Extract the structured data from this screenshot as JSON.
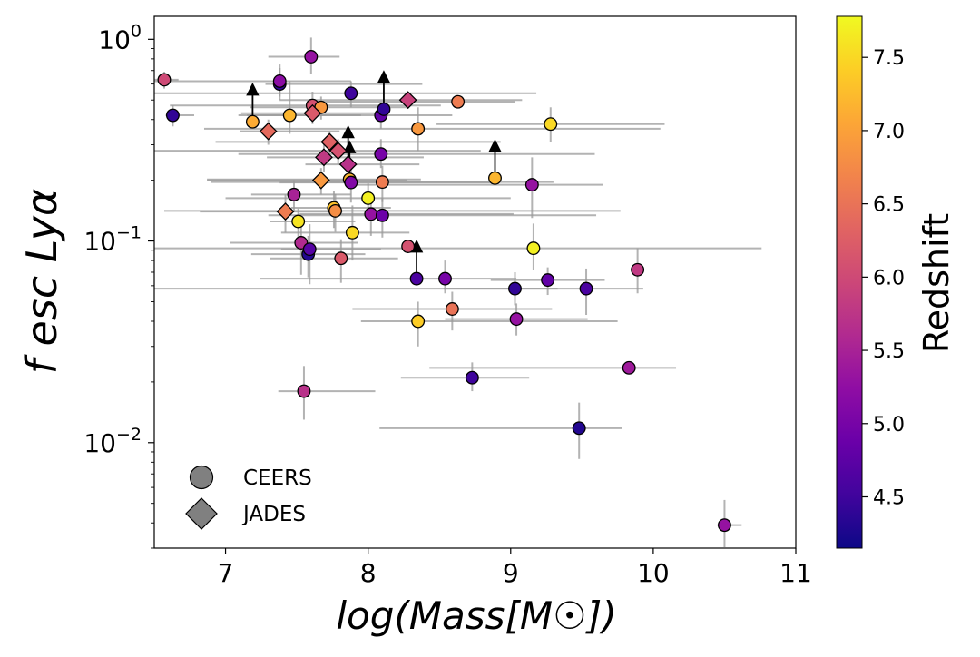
{
  "chart_data": {
    "type": "scatter",
    "xlabel": "log(Mass[M☉])",
    "ylabel": "f esc Lyα",
    "xscale": "linear",
    "yscale": "log",
    "xlim": [
      6.5,
      11
    ],
    "ylim": [
      0.003,
      1.3
    ],
    "x_ticks": [
      7,
      8,
      9,
      10,
      11
    ],
    "x_tick_labels": [
      "7",
      "8",
      "9",
      "10",
      "11"
    ],
    "y_ticks": [
      0.01,
      0.1,
      1
    ],
    "y_tick_labels": [
      "10",
      "10",
      "10"
    ],
    "y_tick_exponents": [
      "−2",
      "−1",
      "0"
    ],
    "legend": {
      "position": "bottom-left",
      "entries": [
        {
          "label": "CEERS",
          "marker": "circle",
          "color": "#808080"
        },
        {
          "label": "JADES",
          "marker": "diamond",
          "color": "#808080"
        }
      ]
    },
    "colorbar": {
      "label": "Redshift",
      "colormap": "plasma",
      "range": [
        4.15,
        7.78
      ],
      "ticks": [
        4.5,
        5.0,
        5.5,
        6.0,
        6.5,
        7.0,
        7.5
      ],
      "tick_labels": [
        "4.5",
        "5.0",
        "5.5",
        "6.0",
        "6.5",
        "7.0",
        "7.5"
      ]
    },
    "series": [
      {
        "name": "CEERS",
        "marker": "circle",
        "points": [
          {
            "x": 6.57,
            "y": 0.63,
            "z": 6.0,
            "xerr": [
              0.08,
              0.1
            ],
            "yerr": [
              0.06,
              0.06
            ]
          },
          {
            "x": 6.63,
            "y": 0.42,
            "z": 4.4,
            "xerr": [
              0.05,
              0.15
            ],
            "yerr": [
              0.05,
              0.05
            ]
          },
          {
            "x": 7.19,
            "y": 0.39,
            "z": 7.1,
            "xerr": [
              0.0,
              0.0
            ],
            "yerr": [
              0.0,
              0.0
            ],
            "lower_limit": true
          },
          {
            "x": 7.38,
            "y": 0.6,
            "z": 4.4,
            "xerr": [
              0.1,
              1.0
            ],
            "yerr": [
              0.1,
              0.15
            ]
          },
          {
            "x": 7.38,
            "y": 0.62,
            "z": 5.2,
            "xerr": [
              0.9,
              0.5
            ],
            "yerr": [
              0.1,
              0.1
            ]
          },
          {
            "x": 7.45,
            "y": 0.42,
            "z": 7.2,
            "xerr": [
              0.3,
              0.5
            ],
            "yerr": [
              0.08,
              0.2
            ]
          },
          {
            "x": 7.48,
            "y": 0.17,
            "z": 5.5,
            "xerr": [
              0.3,
              0.4
            ],
            "yerr": [
              0.03,
              0.03
            ]
          },
          {
            "x": 7.51,
            "y": 0.125,
            "z": 7.6,
            "xerr": [
              0.2,
              0.4
            ],
            "yerr": [
              0.02,
              0.02
            ]
          },
          {
            "x": 7.53,
            "y": 0.098,
            "z": 5.6,
            "xerr": [
              0.5,
              0.4
            ],
            "yerr": [
              0.03,
              0.03
            ]
          },
          {
            "x": 7.55,
            "y": 0.018,
            "z": 5.7,
            "xerr": [
              0.18,
              0.5
            ],
            "yerr": [
              0.005,
              0.006
            ]
          },
          {
            "x": 7.58,
            "y": 0.086,
            "z": 4.3,
            "xerr": [
              0.4,
              0.4
            ],
            "yerr": [
              0.02,
              0.02
            ]
          },
          {
            "x": 7.59,
            "y": 0.091,
            "z": 4.7,
            "xerr": [
              0.2,
              0.5
            ],
            "yerr": [
              0.03,
              0.03
            ]
          },
          {
            "x": 7.6,
            "y": 0.82,
            "z": 5.3,
            "xerr": [
              0.3,
              0.2
            ],
            "yerr": [
              0.15,
              0.2
            ]
          },
          {
            "x": 7.61,
            "y": 0.47,
            "z": 6.1,
            "xerr": [
              1.0,
              0.9
            ],
            "yerr": [
              0.08,
              0.08
            ]
          },
          {
            "x": 7.67,
            "y": 0.46,
            "z": 6.9,
            "xerr": [
              0.5,
              0.6
            ],
            "yerr": [
              0.06,
              0.06
            ]
          },
          {
            "x": 7.76,
            "y": 0.146,
            "z": 7.3,
            "xerr": [
              0.3,
              0.4
            ],
            "yerr": [
              0.03,
              0.03
            ]
          },
          {
            "x": 7.77,
            "y": 0.141,
            "z": 6.8,
            "xerr": [
              1.2,
              2.0
            ],
            "yerr": [
              0.03,
              0.03
            ]
          },
          {
            "x": 7.81,
            "y": 0.082,
            "z": 6.2,
            "xerr": [
              0.5,
              0.4
            ],
            "yerr": [
              0.02,
              0.02
            ]
          },
          {
            "x": 7.87,
            "y": 0.202,
            "z": 7.2,
            "xerr": [
              1.0,
              0.5
            ],
            "yerr": [
              0.0,
              0.0
            ],
            "lower_limit": true
          },
          {
            "x": 7.88,
            "y": 0.54,
            "z": 4.5,
            "xerr": [
              1.5,
              1.3
            ],
            "yerr": [
              0.08,
              0.08
            ]
          },
          {
            "x": 7.88,
            "y": 0.195,
            "z": 5.1,
            "xerr": [
              0.5,
              1.0
            ],
            "yerr": [
              0.04,
              0.04
            ]
          },
          {
            "x": 7.89,
            "y": 0.11,
            "z": 7.5,
            "xerr": [
              0.5,
              0.4
            ],
            "yerr": [
              0.03,
              0.04
            ]
          },
          {
            "x": 8.0,
            "y": 0.163,
            "z": 7.7,
            "xerr": [
              1.0,
              1.0
            ],
            "yerr": [
              0.03,
              0.03
            ]
          },
          {
            "x": 8.02,
            "y": 0.136,
            "z": 5.3,
            "xerr": [
              0.5,
              1.0
            ],
            "yerr": [
              0.03,
              0.03
            ]
          },
          {
            "x": 8.09,
            "y": 0.42,
            "z": 4.8,
            "xerr": [
              1.0,
              0.5
            ],
            "yerr": [
              0.06,
              0.06
            ]
          },
          {
            "x": 8.09,
            "y": 0.27,
            "z": 5.0,
            "xerr": [
              1.0,
              1.5
            ],
            "yerr": [
              0.04,
              0.05
            ]
          },
          {
            "x": 8.1,
            "y": 0.196,
            "z": 6.6,
            "xerr": [
              1.2,
              1.2
            ],
            "yerr": [
              0.04,
              0.04
            ]
          },
          {
            "x": 8.1,
            "y": 0.134,
            "z": 4.9,
            "xerr": [
              0.8,
              1.5
            ],
            "yerr": [
              0.03,
              0.03
            ]
          },
          {
            "x": 8.11,
            "y": 0.45,
            "z": 4.4,
            "xerr": [
              0.0,
              0.0
            ],
            "yerr": [
              0.0,
              0.0
            ],
            "lower_limit": true
          },
          {
            "x": 8.28,
            "y": 0.094,
            "z": 6.1,
            "xerr": [
              0.0,
              0.0
            ],
            "yerr": [
              0.0,
              0.0
            ]
          },
          {
            "x": 8.34,
            "y": 0.065,
            "z": 4.6,
            "xerr": [
              0.0,
              0.0
            ],
            "yerr": [
              0.0,
              0.0
            ],
            "lower_limit": true
          },
          {
            "x": 8.35,
            "y": 0.36,
            "z": 6.9,
            "xerr": [
              1.5,
              1.7
            ],
            "yerr": [
              0.08,
              0.1
            ]
          },
          {
            "x": 8.35,
            "y": 0.04,
            "z": 7.4,
            "xerr": [
              0.4,
              1.4
            ],
            "yerr": [
              0.01,
              0.01
            ]
          },
          {
            "x": 8.54,
            "y": 0.065,
            "z": 5.0,
            "xerr": [
              1.3,
              0.5
            ],
            "yerr": [
              0.01,
              0.015
            ]
          },
          {
            "x": 8.59,
            "y": 0.046,
            "z": 6.5,
            "xerr": [
              0.7,
              0.7
            ],
            "yerr": [
              0.01,
              0.01
            ]
          },
          {
            "x": 8.63,
            "y": 0.49,
            "z": 6.6,
            "xerr": [
              1.0,
              0.4
            ],
            "yerr": [
              0.0,
              0.0
            ]
          },
          {
            "x": 8.73,
            "y": 0.021,
            "z": 4.5,
            "xerr": [
              0.5,
              0.4
            ],
            "yerr": [
              0.003,
              0.004
            ]
          },
          {
            "x": 8.89,
            "y": 0.205,
            "z": 7.2,
            "xerr": [
              0.0,
              0.0
            ],
            "yerr": [
              0.0,
              0.0
            ],
            "lower_limit": true
          },
          {
            "x": 9.03,
            "y": 0.058,
            "z": 4.4,
            "xerr": [
              3.0,
              0.3
            ],
            "yerr": [
              0.01,
              0.012
            ]
          },
          {
            "x": 9.04,
            "y": 0.041,
            "z": 5.3,
            "xerr": [
              0.5,
              0.5
            ],
            "yerr": [
              0.007,
              0.008
            ]
          },
          {
            "x": 9.15,
            "y": 0.19,
            "z": 5.3,
            "xerr": [
              1.3,
              0.5
            ],
            "yerr": [
              0.06,
              0.07
            ]
          },
          {
            "x": 9.16,
            "y": 0.092,
            "z": 7.7,
            "xerr": [
              3.0,
              1.6
            ],
            "yerr": [
              0.02,
              0.03
            ]
          },
          {
            "x": 9.26,
            "y": 0.064,
            "z": 4.8,
            "xerr": [
              0.4,
              0.4
            ],
            "yerr": [
              0.01,
              0.01
            ]
          },
          {
            "x": 9.28,
            "y": 0.38,
            "z": 7.5,
            "xerr": [
              0.8,
              0.8
            ],
            "yerr": [
              0.07,
              0.08
            ]
          },
          {
            "x": 9.48,
            "y": 0.0118,
            "z": 4.3,
            "xerr": [
              1.4,
              0.3
            ],
            "yerr": [
              0.0035,
              0.004
            ]
          },
          {
            "x": 9.53,
            "y": 0.058,
            "z": 4.6,
            "xerr": [
              1.0,
              0.4
            ],
            "yerr": [
              0.015,
              0.015
            ]
          },
          {
            "x": 9.83,
            "y": 0.0235,
            "z": 5.4,
            "xerr": [
              1.4,
              0.33
            ],
            "yerr": [
              0.0,
              0.0
            ]
          },
          {
            "x": 9.89,
            "y": 0.072,
            "z": 5.8,
            "xerr": [
              0.0,
              0.0
            ],
            "yerr": [
              0.017,
              0.02
            ]
          },
          {
            "x": 10.5,
            "y": 0.0039,
            "z": 5.3,
            "xerr": [
              0.05,
              0.12
            ],
            "yerr": [
              0.0009,
              0.0013
            ]
          }
        ]
      },
      {
        "name": "JADES",
        "marker": "diamond",
        "points": [
          {
            "x": 7.3,
            "y": 0.35,
            "z": 6.4,
            "xerr": [
              0.2,
              0.5
            ],
            "yerr": [
              0.05,
              0.05
            ]
          },
          {
            "x": 7.42,
            "y": 0.14,
            "z": 6.6,
            "xerr": [
              0.6,
              0.4
            ],
            "yerr": [
              0.03,
              0.03
            ]
          },
          {
            "x": 7.61,
            "y": 0.43,
            "z": 6.2,
            "xerr": [
              0.5,
              0.5
            ],
            "yerr": [
              0.05,
              0.05
            ]
          },
          {
            "x": 7.67,
            "y": 0.2,
            "z": 6.9,
            "xerr": [
              0.8,
              0.6
            ],
            "yerr": [
              0.03,
              0.03
            ]
          },
          {
            "x": 7.69,
            "y": 0.26,
            "z": 5.8,
            "xerr": [
              0.4,
              0.7
            ],
            "yerr": [
              0.04,
              0.04
            ]
          },
          {
            "x": 7.73,
            "y": 0.31,
            "z": 6.3,
            "xerr": [
              0.8,
              1.2
            ],
            "yerr": [
              0.04,
              0.04
            ]
          },
          {
            "x": 7.79,
            "y": 0.28,
            "z": 6.1,
            "xerr": [
              1.3,
              1.0
            ],
            "yerr": [
              0.04,
              0.04
            ]
          },
          {
            "x": 7.86,
            "y": 0.24,
            "z": 5.7,
            "xerr": [
              0.3,
              0.5
            ],
            "yerr": [
              0.0,
              0.0
            ],
            "lower_limit": true
          },
          {
            "x": 8.28,
            "y": 0.5,
            "z": 5.9,
            "xerr": [
              0.9,
              0.8
            ],
            "yerr": [
              0.0,
              0.0
            ]
          }
        ]
      }
    ]
  }
}
